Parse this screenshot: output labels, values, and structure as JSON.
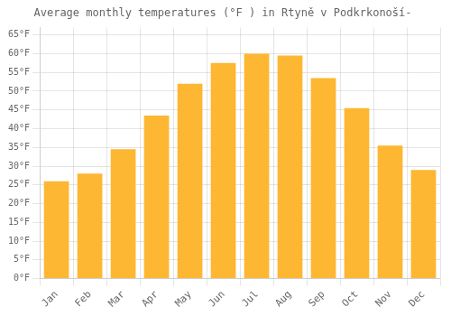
{
  "chart_data": {
    "type": "bar",
    "title": "Average monthly temperatures (°F ) in Rtyně v Podkrkonoší-",
    "categories": [
      "Jan",
      "Feb",
      "Mar",
      "Apr",
      "May",
      "Jun",
      "Jul",
      "Aug",
      "Sep",
      "Oct",
      "Nov",
      "Dec"
    ],
    "values": [
      26.0,
      28.0,
      34.5,
      43.5,
      52.0,
      57.5,
      60.0,
      59.5,
      53.5,
      45.5,
      35.5,
      29.0
    ],
    "color": "#FDB733",
    "ylim": [
      0,
      67
    ],
    "yticks": [
      {
        "value": 0,
        "label": "0°F"
      },
      {
        "value": 5,
        "label": "5°F"
      },
      {
        "value": 10,
        "label": "10°F"
      },
      {
        "value": 15,
        "label": "15°F"
      },
      {
        "value": 20,
        "label": "20°F"
      },
      {
        "value": 25,
        "label": "25°F"
      },
      {
        "value": 30,
        "label": "30°F"
      },
      {
        "value": 35,
        "label": "35°F"
      },
      {
        "value": 40,
        "label": "40°F"
      },
      {
        "value": 45,
        "label": "45°F"
      },
      {
        "value": 50,
        "label": "50°F"
      },
      {
        "value": 55,
        "label": "55°F"
      },
      {
        "value": 60,
        "label": "60°F"
      },
      {
        "value": 65,
        "label": "65°F"
      }
    ],
    "grid": true
  }
}
